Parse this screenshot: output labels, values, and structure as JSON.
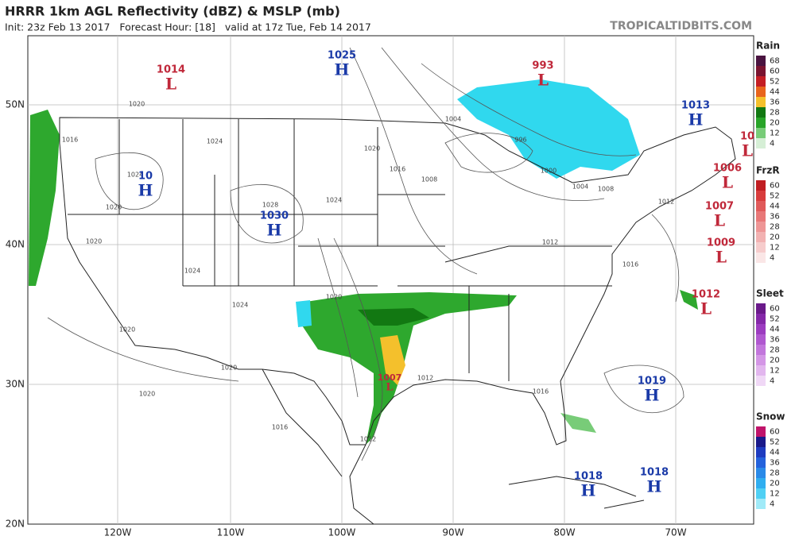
{
  "header": {
    "title": "HRRR 1km AGL Reflectivity (dBZ) & MSLP (mb)",
    "subtitle": "Init: 23z Feb 13 2017   Forecast Hour: [18]   valid at 17z Tue, Feb 14 2017",
    "site": "TROPICALTIDBITS.COM"
  },
  "map": {
    "lon_labels": [
      "120W",
      "110W",
      "100W",
      "90W",
      "80W",
      "70W"
    ],
    "lat_labels": [
      "50N",
      "40N",
      "30N",
      "20N"
    ],
    "pressure_centers": [
      {
        "value": 1014,
        "letter": "L",
        "color": "#c0283a"
      },
      {
        "value": 1025,
        "letter": "H",
        "color": "#1a3aa8"
      },
      {
        "value": 993,
        "letter": "L",
        "color": "#c0283a"
      },
      {
        "value": 1013,
        "letter": "H",
        "color": "#1a3aa8"
      },
      {
        "value": 10,
        "letter": "L",
        "color": "#c0283a"
      },
      {
        "value": 1006,
        "letter": "L",
        "color": "#c0283a"
      },
      {
        "value": 10,
        "letter": "H",
        "color": "#1a3aa8"
      },
      {
        "value": 1030,
        "letter": "H",
        "color": "#1a3aa8"
      },
      {
        "value": 1007,
        "letter": "L",
        "color": "#c0283a"
      },
      {
        "value": 1009,
        "letter": "L",
        "color": "#c0283a"
      },
      {
        "value": 1012,
        "letter": "L",
        "color": "#c0283a"
      },
      {
        "value": 1019,
        "letter": "H",
        "color": "#1a3aa8"
      },
      {
        "value": 1007,
        "letter": "L",
        "color": "#c0283a"
      },
      {
        "value": 1018,
        "letter": "H",
        "color": "#1a3aa8"
      },
      {
        "value": 1018,
        "letter": "H",
        "color": "#1a3aa8"
      }
    ],
    "isobar_labels": [
      1020,
      1016,
      1024,
      1024,
      1020,
      1020,
      1028,
      1024,
      1020,
      1016,
      1004,
      996,
      1008,
      1000,
      1004,
      1008,
      1012,
      1012,
      1016,
      1024,
      1024,
      1020,
      1020,
      1020,
      1016,
      1012,
      1012,
      1016,
      1020
    ]
  },
  "legend": [
    {
      "name": "Rain",
      "ticks": [
        68,
        60,
        52,
        44,
        36,
        28,
        20,
        12,
        4
      ],
      "colors": [
        "#4a1440",
        "#7a1430",
        "#c41e24",
        "#e8641c",
        "#f4c02c",
        "#127812",
        "#28a428",
        "#78cc78",
        "#d6efd6"
      ]
    },
    {
      "name": "FrzR",
      "ticks": [
        60,
        52,
        44,
        36,
        28,
        20,
        12,
        4
      ],
      "colors": [
        "#c01e22",
        "#d83c3c",
        "#e05a5a",
        "#e87878",
        "#ee9696",
        "#f2b2b2",
        "#f6cccc",
        "#fae6e6"
      ]
    },
    {
      "name": "Sleet",
      "ticks": [
        60,
        52,
        44,
        36,
        28,
        20,
        12,
        4
      ],
      "colors": [
        "#6a1a8a",
        "#8428a8",
        "#9c3cc0",
        "#b058d0",
        "#c276dc",
        "#d496e6",
        "#e2b6ee",
        "#f0d8f6"
      ]
    },
    {
      "name": "Snow",
      "ticks": [
        60,
        52,
        44,
        36,
        28,
        20,
        12,
        4
      ],
      "colors": [
        "#c0146a",
        "#1a1a8a",
        "#1e3cc0",
        "#2462dc",
        "#2a8ae8",
        "#30aef0",
        "#50d0f4",
        "#a0eaf8"
      ]
    }
  ]
}
